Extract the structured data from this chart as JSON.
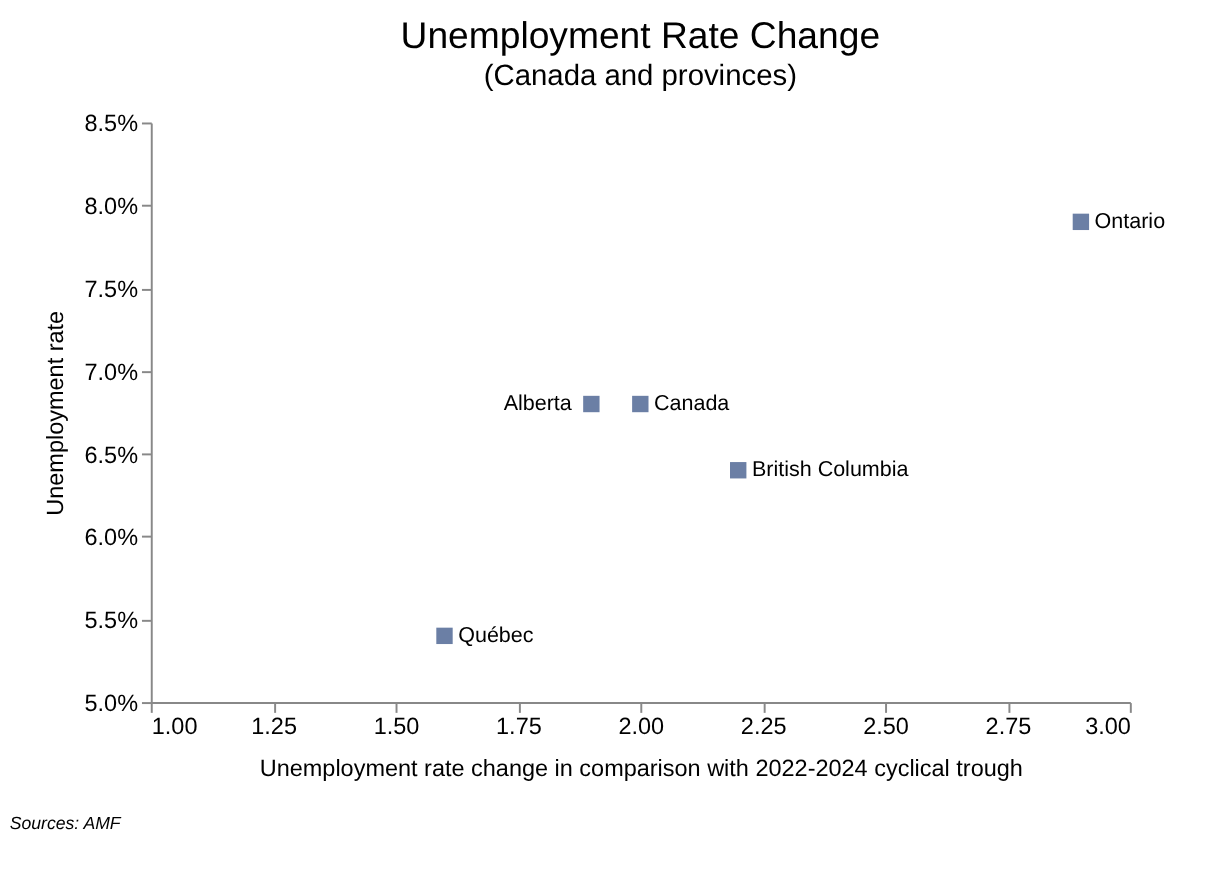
{
  "chart_data": {
    "type": "scatter",
    "title": "Unemployment Rate Change",
    "subtitle": "(Canada and provinces)",
    "xlabel": "Unemployment rate change in comparison with 2022-2024 cyclical trough",
    "ylabel": "Unemployment rate",
    "series": [
      {
        "color": "#6b7fa5",
        "x": [
          2.9,
          2.0,
          1.9,
          2.2,
          1.6
        ],
        "values": [
          7.9,
          6.8,
          6.8,
          6.4,
          5.4
        ]
      }
    ],
    "annotations": [
      {
        "text": "Ontario",
        "x": 2.9,
        "y": 7.9
      },
      {
        "text": "Canada",
        "x": 2.0,
        "y": 6.8
      },
      {
        "text": "Alberta",
        "x": 1.9,
        "y": 6.8
      },
      {
        "text": "British Columbia",
        "x": 2.2,
        "y": 6.4
      },
      {
        "text": "Québec",
        "x": 1.6,
        "y": 5.4
      },
      "Sources: AMF"
    ],
    "xlim": [
      1.0,
      3.0
    ],
    "ylim": [
      5.0,
      8.5
    ],
    "xticks": [
      {
        "value": 1.0,
        "label": "1.00"
      },
      {
        "value": 1.25,
        "label": "1.25"
      },
      {
        "value": 1.5,
        "label": "1.50"
      },
      {
        "value": 1.75,
        "label": "1.75"
      },
      {
        "value": 2.0,
        "label": "2.00"
      },
      {
        "value": 2.25,
        "label": "2.25"
      },
      {
        "value": 2.5,
        "label": "2.50"
      },
      {
        "value": 2.75,
        "label": "2.75"
      },
      {
        "value": 3.0,
        "label": "3.00"
      }
    ],
    "yticks": [
      {
        "value": 5.0,
        "label": "5.0%"
      },
      {
        "value": 5.5,
        "label": "5.5%"
      },
      {
        "value": 6.0,
        "label": "6.0%"
      },
      {
        "value": 6.5,
        "label": "6.5%"
      },
      {
        "value": 7.0,
        "label": "7.0%"
      },
      {
        "value": 7.5,
        "label": "7.5%"
      },
      {
        "value": 8.0,
        "label": "8.0%"
      },
      {
        "value": 8.5,
        "label": "8.5%"
      }
    ],
    "marker": "square",
    "grid": false
  }
}
